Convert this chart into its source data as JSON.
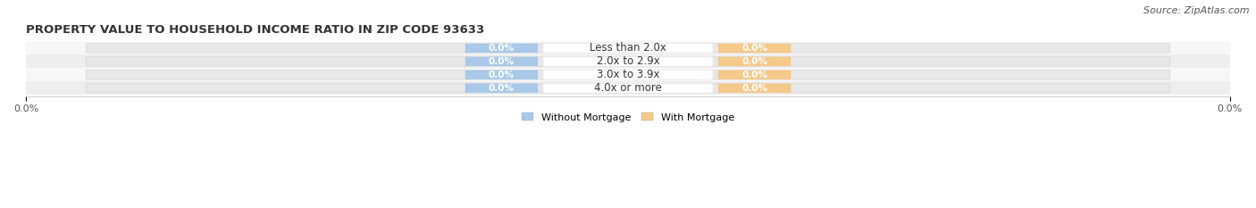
{
  "title": "PROPERTY VALUE TO HOUSEHOLD INCOME RATIO IN ZIP CODE 93633",
  "source": "Source: ZipAtlas.com",
  "categories": [
    "Less than 2.0x",
    "2.0x to 2.9x",
    "3.0x to 3.9x",
    "4.0x or more"
  ],
  "without_mortgage": [
    0.0,
    0.0,
    0.0,
    0.0
  ],
  "with_mortgage": [
    0.0,
    0.0,
    0.0,
    0.0
  ],
  "without_mortgage_color": "#aac9e8",
  "with_mortgage_color": "#f5c98a",
  "bar_bg_color_light": "#f0f0f0",
  "bar_bg_color_dark": "#e4e4e4",
  "row_bg_colors": [
    "#f7f7f7",
    "#eeeeee"
  ],
  "title_fontsize": 9.5,
  "source_fontsize": 8,
  "cat_fontsize": 8.5,
  "val_fontsize": 7.5,
  "tick_fontsize": 8,
  "tick_label": "0.0%",
  "figsize": [
    14.06,
    2.33
  ],
  "dpi": 100
}
